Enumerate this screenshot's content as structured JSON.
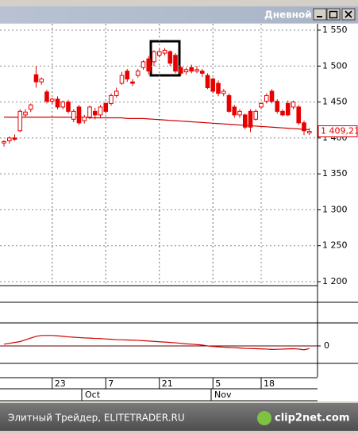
{
  "window_title": "Дневной",
  "footer": "Элитный Трейдер, ELITETRADER.RU",
  "watermark": "clip2net.com",
  "chart_data": {
    "type": "candlestick",
    "categories": [
      null,
      null,
      null,
      null,
      null,
      null,
      null,
      null,
      null,
      "23",
      null,
      null,
      null,
      null,
      null,
      null,
      null,
      null,
      null,
      "7",
      null,
      null,
      null,
      null,
      null,
      null,
      null,
      null,
      null,
      "21",
      null,
      null,
      null,
      null,
      null,
      null,
      null,
      null,
      null,
      "5",
      null,
      null,
      null,
      null,
      null,
      null,
      null,
      null,
      "18",
      null,
      null,
      null,
      null,
      null,
      null,
      null,
      null,
      null
    ],
    "months": [
      "Oct",
      "Nov"
    ],
    "open": [
      1393,
      1396,
      1400,
      1410,
      1432,
      1440,
      1488,
      1478,
      1464,
      1451,
      1454,
      1443,
      1450,
      1426,
      1443,
      1424,
      1429,
      1437,
      1432,
      1448,
      1448,
      1459,
      1476,
      1493,
      1478,
      1487,
      1498,
      1510,
      1506,
      1515,
      1518,
      1520,
      1515,
      1498,
      1492,
      1498,
      1493,
      1493,
      1487,
      1482,
      1476,
      1462,
      1459,
      1443,
      1432,
      1432,
      1437,
      1426,
      1443,
      1451,
      1465,
      1451,
      1437,
      1448,
      1443,
      1443,
      1421,
      1407
    ],
    "high": [
      1397,
      1402,
      1405,
      1440,
      1440,
      1448,
      1500,
      1484,
      1467,
      1456,
      1458,
      1452,
      1453,
      1440,
      1446,
      1432,
      1445,
      1442,
      1446,
      1450,
      1462,
      1470,
      1492,
      1496,
      1482,
      1496,
      1508,
      1514,
      1522,
      1524,
      1525,
      1522,
      1518,
      1500,
      1498,
      1502,
      1500,
      1496,
      1490,
      1484,
      1480,
      1468,
      1462,
      1446,
      1440,
      1434,
      1440,
      1440,
      1450,
      1462,
      1468,
      1454,
      1440,
      1452,
      1452,
      1446,
      1424,
      1414
    ],
    "low": [
      1388,
      1392,
      1396,
      1408,
      1429,
      1436,
      1470,
      1474,
      1448,
      1447,
      1440,
      1440,
      1434,
      1422,
      1418,
      1420,
      1426,
      1426,
      1428,
      1434,
      1445,
      1456,
      1474,
      1478,
      1472,
      1484,
      1495,
      1488,
      1500,
      1512,
      1515,
      1500,
      1490,
      1486,
      1488,
      1490,
      1490,
      1485,
      1468,
      1462,
      1458,
      1458,
      1435,
      1428,
      1428,
      1412,
      1408,
      1424,
      1440,
      1448,
      1448,
      1434,
      1430,
      1430,
      1440,
      1418,
      1404,
      1404
    ],
    "close": [
      1395,
      1400,
      1398,
      1437,
      1436,
      1446,
      1478,
      1482,
      1451,
      1454,
      1443,
      1450,
      1437,
      1437,
      1421,
      1429,
      1443,
      1432,
      1443,
      1437,
      1459,
      1465,
      1487,
      1482,
      1476,
      1493,
      1506,
      1493,
      1520,
      1520,
      1522,
      1504,
      1493,
      1490,
      1495,
      1493,
      1495,
      1490,
      1470,
      1465,
      1462,
      1465,
      1437,
      1432,
      1437,
      1415,
      1415,
      1437,
      1448,
      1459,
      1451,
      1437,
      1432,
      1432,
      1450,
      1421,
      1410,
      1409.21
    ],
    "close_label": "1 409,21",
    "color": "#e60000",
    "ylim": [
      1200,
      1550
    ],
    "yticks": [
      {
        "value": 1550,
        "label": "1 550"
      },
      {
        "value": 1500,
        "label": "1 500"
      },
      {
        "value": 1450,
        "label": "1 450"
      },
      {
        "value": 1400,
        "label": "1 400"
      },
      {
        "value": 1350,
        "label": "1 350"
      },
      {
        "value": 1300,
        "label": "1 300"
      },
      {
        "value": 1250,
        "label": "1 250"
      },
      {
        "value": 1200,
        "label": "1 200"
      }
    ],
    "grid": true,
    "overlay": {
      "type": "line",
      "color": "#cc0000",
      "values": [
        1429,
        1429,
        1429,
        1429,
        1429,
        1429,
        1429,
        1429,
        1429,
        1429,
        1429,
        1429,
        1429,
        1429,
        1429,
        1429,
        1428,
        1428,
        1428,
        1428,
        1428,
        1428,
        1428,
        1427,
        1427,
        1427,
        1427,
        1426.5,
        1426,
        1425.5,
        1425,
        1424.5,
        1424,
        1423.5,
        1423,
        1422.5,
        1422,
        1421.5,
        1421,
        1420.5,
        1420,
        1419.5,
        1419,
        1418.5,
        1418,
        1417.5,
        1417,
        1416.5,
        1416,
        1415.5,
        1415,
        1414.5,
        1414,
        1413.5,
        1413,
        1412.5,
        1412,
        1411.5
      ]
    },
    "oscillator": {
      "type": "line",
      "color": "#d00000",
      "ylim": [
        -10,
        10
      ],
      "yticks": [
        0
      ],
      "values": [
        1,
        1.5,
        2,
        2.5,
        3.5,
        4.5,
        5.5,
        6,
        6,
        6,
        5.8,
        5.5,
        5.2,
        5,
        4.8,
        4.6,
        4.5,
        4.3,
        4.2,
        4,
        3.8,
        3.6,
        3.5,
        3.4,
        3.3,
        3.2,
        3,
        2.8,
        2.6,
        2.4,
        2.2,
        2,
        1.8,
        1.5,
        1.2,
        1,
        0.8,
        0.5,
        0,
        -0.3,
        -0.5,
        -0.7,
        -0.9,
        -1,
        -1.2,
        -1.4,
        -1.5,
        -1.6,
        -1.7,
        -1.8,
        -2,
        -1.9,
        -1.8,
        -1.7,
        -1.6,
        -1.8,
        -2.2,
        -1.5
      ]
    }
  }
}
